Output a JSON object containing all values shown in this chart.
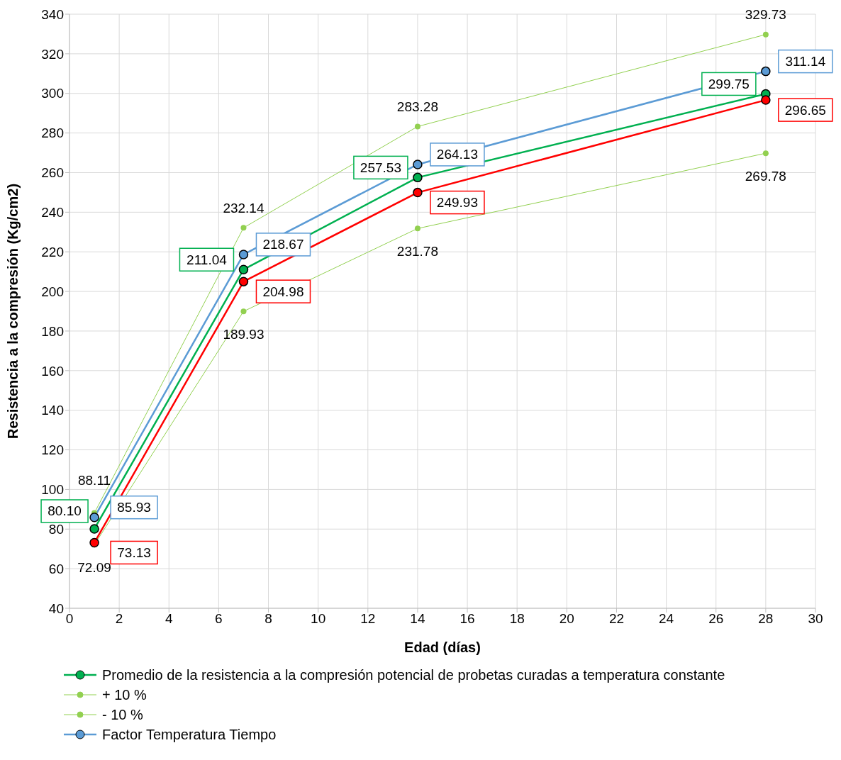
{
  "chart_data": {
    "type": "line",
    "xlabel": "Edad (días)",
    "ylabel": "Resistencia a la compresión (Kg/cm2)",
    "x": [
      1,
      7,
      14,
      28
    ],
    "xlim": [
      0,
      30
    ],
    "xticks": [
      0,
      2,
      4,
      6,
      8,
      10,
      12,
      14,
      16,
      18,
      20,
      22,
      24,
      26,
      28,
      30
    ],
    "ylim": [
      40,
      340
    ],
    "yticks": [
      40,
      60,
      80,
      100,
      120,
      140,
      160,
      180,
      200,
      220,
      240,
      260,
      280,
      300,
      320,
      340
    ],
    "grid": true,
    "legend": "bottom",
    "marker": "circle",
    "line_style": "solid",
    "series": [
      {
        "name": "Promedio de la resistencia a la compresión potencial de probetas curadas a temperatura constante",
        "color": "#00b050",
        "values": [
          80.1,
          211.04,
          257.53,
          299.75
        ],
        "value_labels": [
          "80.10",
          "211.04",
          "257.53",
          "299.75"
        ]
      },
      {
        "name": "+ 10 %",
        "color": "#92d050",
        "values": [
          88.11,
          232.14,
          283.28,
          329.73
        ],
        "value_labels": [
          "88.11",
          "232.14",
          "283.28",
          "329.73"
        ]
      },
      {
        "name": "- 10 %",
        "color": "#92d050",
        "values": [
          72.09,
          189.93,
          231.78,
          269.78
        ],
        "value_labels": [
          "72.09",
          "189.93",
          "231.78",
          "269.78"
        ]
      },
      {
        "name": "Factor Temperatura Tiempo",
        "color": "#5b9bd5",
        "values": [
          85.93,
          218.67,
          264.13,
          311.14
        ],
        "value_labels": [
          "85.93",
          "218.67",
          "264.13",
          "311.14"
        ]
      },
      {
        "color": "#ff0000",
        "values": [
          73.13,
          204.98,
          249.93,
          296.65
        ],
        "value_labels": [
          "73.13",
          "204.98",
          "249.93",
          "296.65"
        ]
      }
    ]
  }
}
